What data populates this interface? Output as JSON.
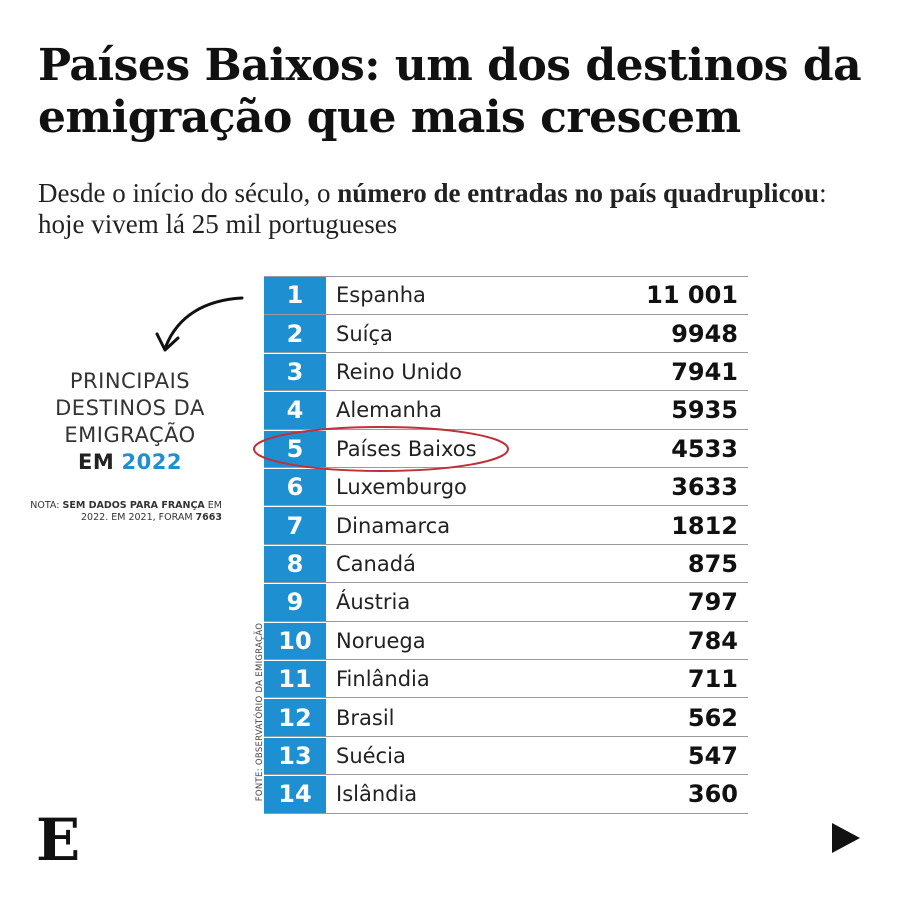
{
  "title": {
    "bold": "Países Baixos",
    "rest": ": um dos destinos da emigração que mais crescem"
  },
  "subtitle": {
    "part1": "Desde o início do século, o ",
    "bold": "número de entradas no país quadruplicou",
    "part2": ": hoje vivem lá 25 mil portugueses"
  },
  "side_label": {
    "line1": "PRINCIPAIS",
    "line2": "DESTINOS DA",
    "line3": "EMIGRAÇÃO",
    "em": "EM",
    "year": "2022"
  },
  "note": {
    "prefix": "NOTA: ",
    "bold1": "SEM DADOS PARA FRANÇA",
    "mid": " EM 2022. EM 2021, FORAM ",
    "bold2": "7663"
  },
  "source": "FONTE: OBSERVATÓRIO DA EMIGRAÇÃO",
  "chart_data": {
    "type": "table",
    "title": "Países Baixos: um dos destinos da emigração que mais crescem",
    "columns": [
      "rank",
      "country",
      "value"
    ],
    "rows": [
      {
        "rank": "1",
        "country": "Espanha",
        "value": "11 001"
      },
      {
        "rank": "2",
        "country": "Suíça",
        "value": "9948"
      },
      {
        "rank": "3",
        "country": "Reino Unido",
        "value": "7941"
      },
      {
        "rank": "4",
        "country": "Alemanha",
        "value": "5935"
      },
      {
        "rank": "5",
        "country": "Países Baixos",
        "value": "4533"
      },
      {
        "rank": "6",
        "country": "Luxemburgo",
        "value": "3633"
      },
      {
        "rank": "7",
        "country": "Dinamarca",
        "value": "1812"
      },
      {
        "rank": "8",
        "country": "Canadá",
        "value": "875"
      },
      {
        "rank": "9",
        "country": "Áustria",
        "value": "797"
      },
      {
        "rank": "10",
        "country": "Noruega",
        "value": "784"
      },
      {
        "rank": "11",
        "country": "Finlândia",
        "value": "711"
      },
      {
        "rank": "12",
        "country": "Brasil",
        "value": "562"
      },
      {
        "rank": "13",
        "country": "Suécia",
        "value": "547"
      },
      {
        "rank": "14",
        "country": "Islândia",
        "value": "360"
      }
    ],
    "highlighted_country": "Países Baixos"
  },
  "logo": "E",
  "colors": {
    "accent": "#1e8fd0",
    "highlight": "#c0303a"
  },
  "icons": {
    "arrow": "curved-arrow-icon",
    "next": "play-triangle-icon"
  }
}
